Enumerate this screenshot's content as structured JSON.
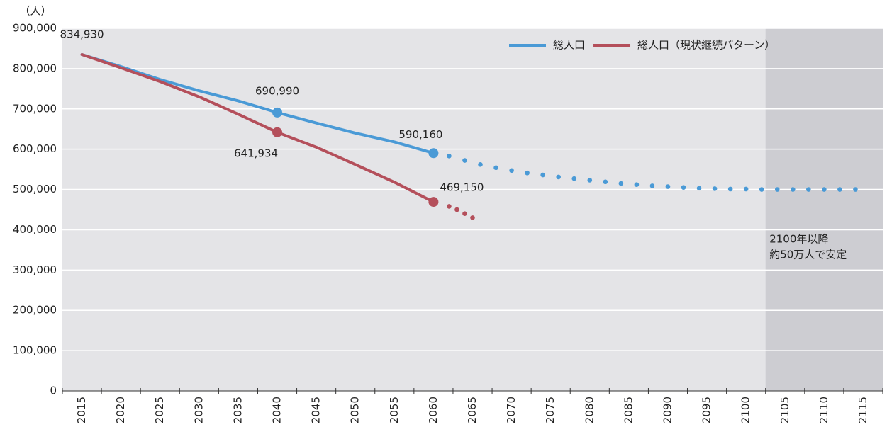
{
  "chart_data": {
    "type": "line",
    "y_unit": "（人）",
    "xlim": [
      2012.5,
      2117.5
    ],
    "xticks": [
      2015,
      2020,
      2025,
      2030,
      2035,
      2040,
      2045,
      2050,
      2055,
      2060,
      2065,
      2070,
      2075,
      2080,
      2085,
      2090,
      2095,
      2100,
      2105,
      2110,
      2115
    ],
    "ylim": [
      0,
      900000
    ],
    "yticks": [
      0,
      {
        "value": 100000,
        "label": "100,000"
      },
      {
        "value": 200000,
        "label": "200,000"
      },
      {
        "value": 300000,
        "label": "300,000"
      },
      {
        "value": 400000,
        "label": "400,000"
      },
      {
        "value": 500000,
        "label": "500,000"
      },
      {
        "value": 600000,
        "label": "600,000"
      },
      {
        "value": 700000,
        "label": "700,000"
      },
      {
        "value": 800000,
        "label": "800,000"
      },
      {
        "value": 900000,
        "label": "900,000"
      }
    ],
    "grid": true,
    "background": "#e4e4e7",
    "shade": {
      "xlim": [
        2102.5,
        2117.5
      ],
      "color": "#cdcdd2"
    },
    "legend": "top-right",
    "annotation": {
      "x": 2103,
      "lines": [
        "2100年以降",
        "約50万人で安定"
      ]
    },
    "series": [
      {
        "name": "総人口",
        "color": "#4a9ad6",
        "x": [
          2015,
          2020,
          2025,
          2030,
          2035,
          2040,
          2045,
          2050,
          2055,
          2060
        ],
        "values": [
          834930,
          805000,
          773000,
          745000,
          720000,
          690990,
          665000,
          640000,
          618000,
          590160
        ],
        "value_labels": [
          "834,930",
          null,
          null,
          null,
          null,
          "690,990",
          null,
          null,
          null,
          "590,160"
        ],
        "markers": [
          2040,
          2060
        ]
      },
      {
        "name": "総人口（現状継続パターン）",
        "color": "#b44f5b",
        "x": [
          2015,
          2020,
          2025,
          2030,
          2035,
          2040,
          2045,
          2050,
          2055,
          2060
        ],
        "values": [
          834930,
          802000,
          768000,
          730000,
          687000,
          641934,
          605000,
          562000,
          518000,
          469150
        ],
        "value_labels": [
          null,
          null,
          null,
          null,
          null,
          "641,934",
          null,
          null,
          null,
          "469,150"
        ],
        "markers": [
          2040,
          2060
        ]
      },
      {
        "color": "#4a9ad6",
        "style": "dotted",
        "x": [
          2062,
          2064,
          2066,
          2068,
          2070,
          2072,
          2074,
          2076,
          2078,
          2080,
          2082,
          2084,
          2086,
          2088,
          2090,
          2092,
          2094,
          2096,
          2098,
          2100,
          2102,
          2104,
          2106,
          2108,
          2110,
          2112,
          2114
        ],
        "values": [
          583000,
          572000,
          562000,
          554000,
          547000,
          541000,
          536000,
          531000,
          527000,
          523000,
          519000,
          515000,
          512000,
          509000,
          507000,
          505000,
          503000,
          502000,
          501000,
          501000,
          500000,
          500000,
          500000,
          500000,
          500000,
          500000,
          500000
        ]
      },
      {
        "color": "#b44f5b",
        "style": "dotted",
        "x": [
          2062,
          2063,
          2064,
          2065
        ],
        "values": [
          458000,
          450000,
          440000,
          430000
        ]
      }
    ]
  }
}
